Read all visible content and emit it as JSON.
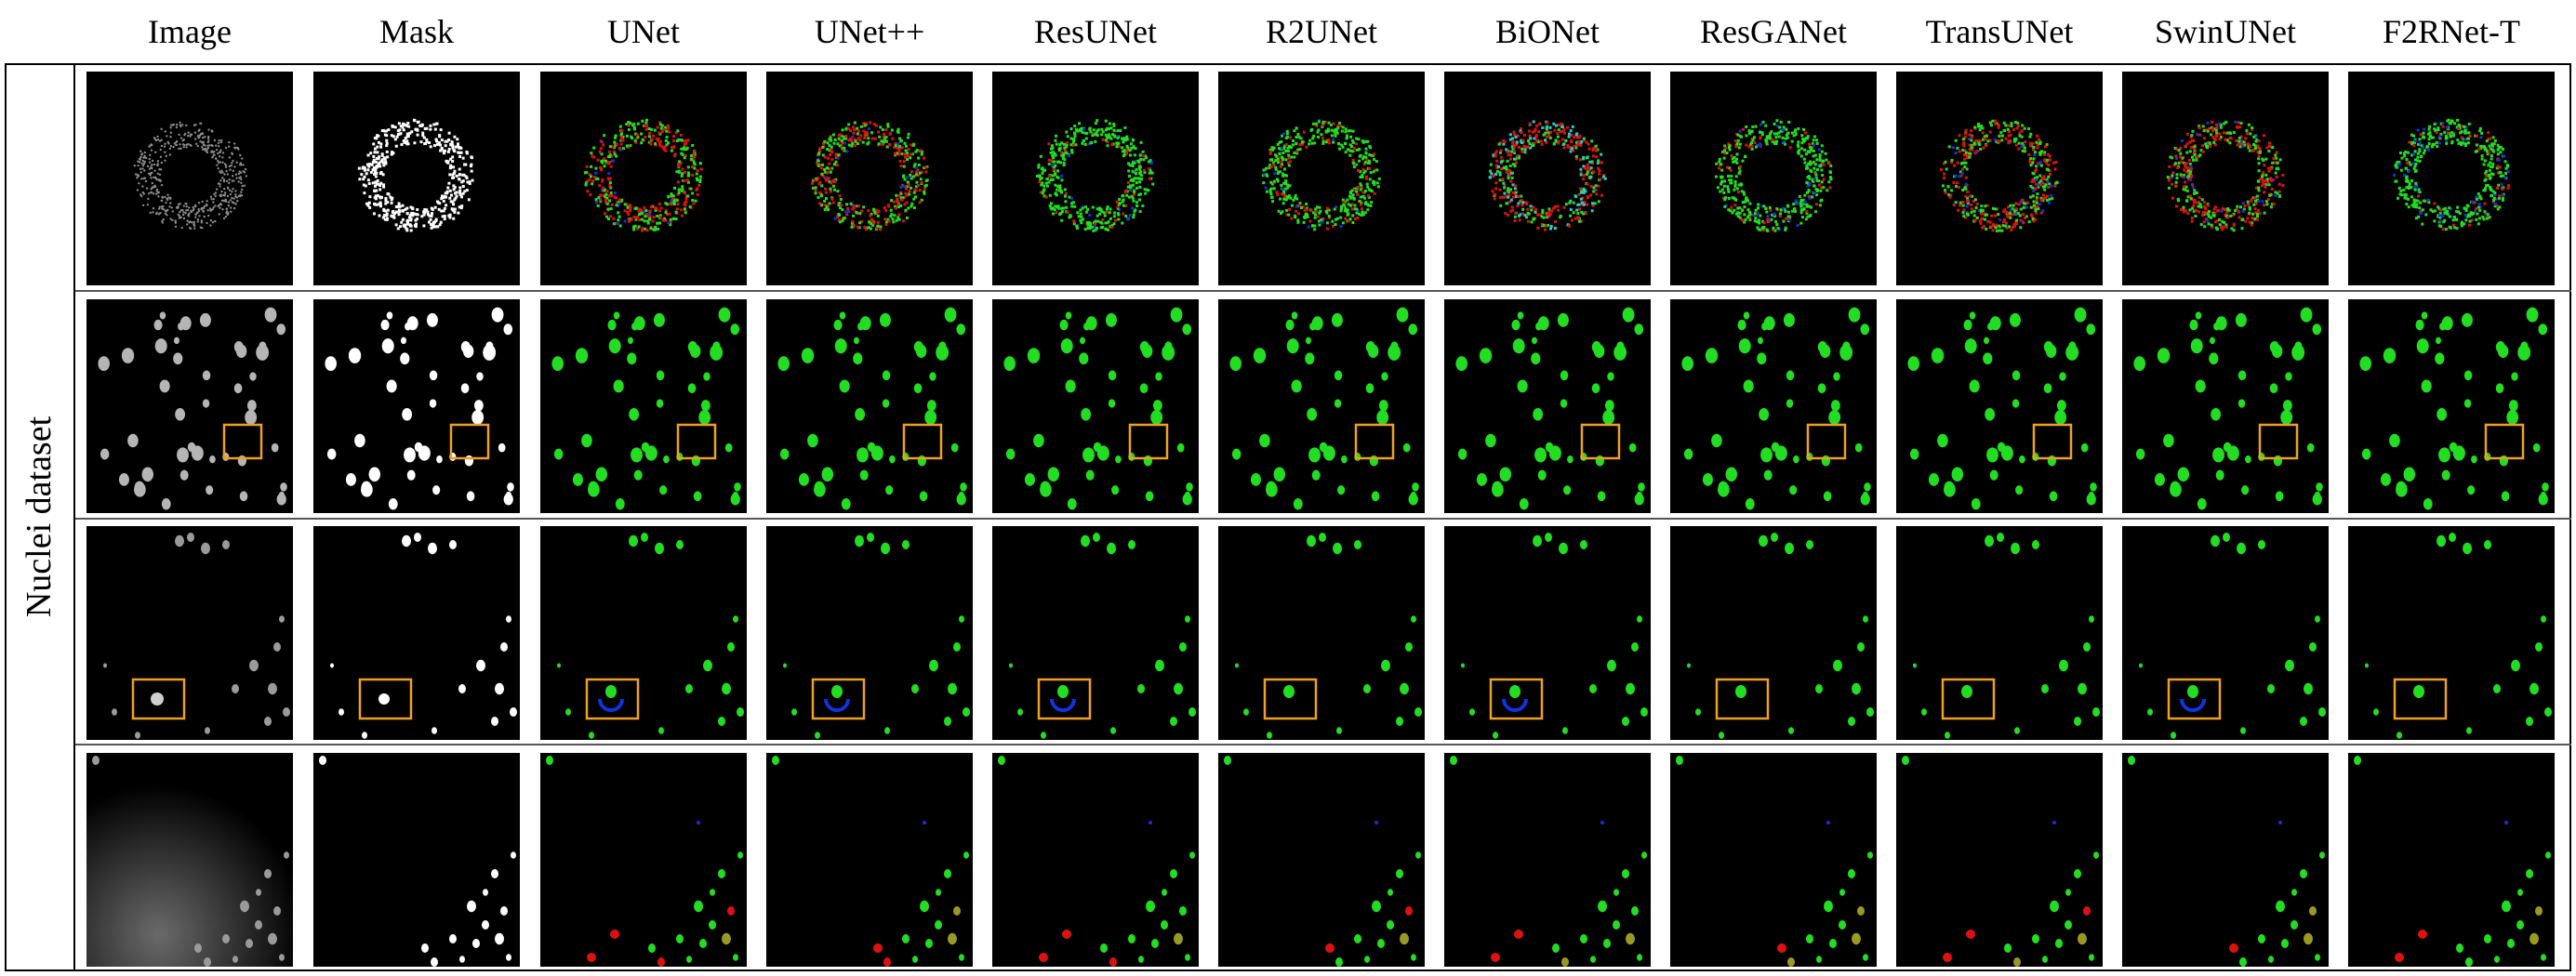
{
  "columns": [
    "Image",
    "Mask",
    "UNet",
    "UNet++",
    "ResUNet",
    "R2UNet",
    "BiONet",
    "ResGANet",
    "TransUNet",
    "SwinUNet",
    "F2RNet-T"
  ],
  "row_group_label": "Nuclei dataset",
  "rows": [
    {
      "id": "row-1",
      "has_zoom_box": false
    },
    {
      "id": "row-2",
      "has_zoom_box": true
    },
    {
      "id": "row-3",
      "has_zoom_box": true
    },
    {
      "id": "row-4",
      "has_zoom_box": false
    }
  ],
  "colors": {
    "correct": "#22dd22",
    "false_positive": "#dd1111",
    "false_negative": "#1133dd",
    "mask": "#ffffff",
    "zoom_box": "#f0a020",
    "background": "#000000"
  }
}
